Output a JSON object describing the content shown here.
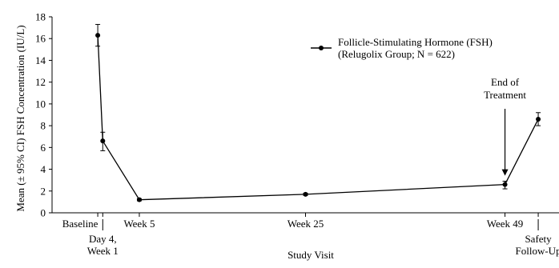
{
  "chart_data": {
    "type": "line",
    "ylabel": "Mean (± 95% CI) FSH Concentration (IU/L)",
    "xlabel": "Study Visit",
    "ylim": [
      0,
      18
    ],
    "yticks": [
      0,
      2,
      4,
      6,
      8,
      10,
      12,
      14,
      16,
      18
    ],
    "grid": false,
    "legend_position": "top-right",
    "x_ticks": [
      {
        "label": "Baseline",
        "x": 0
      },
      {
        "label": "Day 4,\nWeek 1",
        "x": 0.6
      },
      {
        "label": "Week 5",
        "x": 5
      },
      {
        "label": "Week 25",
        "x": 25
      },
      {
        "label": "Week 49",
        "x": 49
      },
      {
        "label": "Safety\nFollow-Up",
        "x": 53
      }
    ],
    "xlim": [
      -5.5,
      55.5
    ],
    "series": [
      {
        "name": "Follicle-Stimulating  Hormone (FSH)\n(Relugolix  Group; N = 622)",
        "color": "#000000",
        "points": [
          {
            "x": 0,
            "y": 16.3,
            "lo": 15.3,
            "hi": 17.3
          },
          {
            "x": 0.6,
            "y": 6.6,
            "lo": 5.7,
            "hi": 7.4
          },
          {
            "x": 5,
            "y": 1.2,
            "lo": 1.1,
            "hi": 1.3
          },
          {
            "x": 25,
            "y": 1.7,
            "lo": 1.6,
            "hi": 1.8
          },
          {
            "x": 49,
            "y": 2.6,
            "lo": 2.2,
            "hi": 2.9
          },
          {
            "x": 53,
            "y": 8.6,
            "lo": 8.0,
            "hi": 9.2
          }
        ]
      }
    ],
    "annotations": [
      {
        "text": "End of\nTreatment",
        "x": 49,
        "y": 2.6,
        "type": "arrow"
      }
    ]
  }
}
